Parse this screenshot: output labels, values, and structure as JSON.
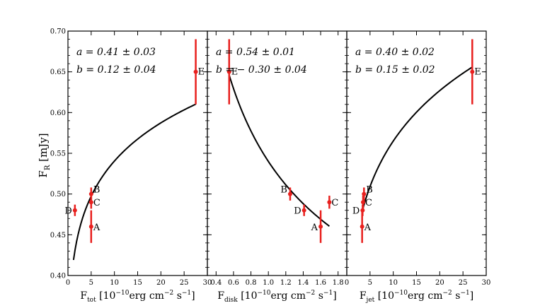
{
  "figure": {
    "ylabel_main": "F",
    "ylabel_sub": "R",
    "ylabel_unit": " [mJy]",
    "ylim": [
      0.4,
      0.7
    ],
    "yticks": [
      0.4,
      0.45,
      0.5,
      0.55,
      0.6,
      0.65,
      0.7
    ],
    "ytick_labels": [
      "0.40",
      "0.45",
      "0.50",
      "0.55",
      "0.60",
      "0.65",
      "0.70"
    ]
  },
  "chart_data": [
    {
      "type": "scatter",
      "name": "panel-tot",
      "xlabel": {
        "main": "F",
        "sub": "tot",
        "unit_pre": " [10",
        "exp1": "−10",
        "unit_mid1": "erg cm",
        "exp2": "−2",
        "unit_mid2": " s",
        "exp3": "−1",
        "unit_post": "]"
      },
      "xlim": [
        0,
        30
      ],
      "xticks": [
        0,
        5,
        10,
        15,
        20,
        25,
        30
      ],
      "xtick_labels": [
        "0",
        "5",
        "10",
        "15",
        "20",
        "25",
        "30"
      ],
      "points": [
        {
          "label": "A",
          "x": 5.0,
          "y": 0.46,
          "yerr": 0.02
        },
        {
          "label": "B",
          "x": 5.0,
          "y": 0.5,
          "yerr": 0.008
        },
        {
          "label": "C",
          "x": 5.0,
          "y": 0.49,
          "yerr": 0.008
        },
        {
          "label": "D",
          "x": 1.5,
          "y": 0.48,
          "yerr": 0.007
        },
        {
          "label": "E",
          "x": 27.5,
          "y": 0.65,
          "yerr": 0.04
        }
      ],
      "fit": {
        "a": 0.41,
        "b": 0.12,
        "x_range": [
          1.2,
          27.5
        ]
      },
      "annotations": [
        "a = 0.41 ± 0.03",
        "b = 0.12 ± 0.04"
      ]
    },
    {
      "type": "scatter",
      "name": "panel-disk",
      "xlabel": {
        "main": "F",
        "sub": "disk",
        "unit_pre": " [10",
        "exp1": "−10",
        "unit_mid1": "erg cm",
        "exp2": "−2",
        "unit_mid2": " s",
        "exp3": "−1",
        "unit_post": "]"
      },
      "xlim": [
        0.3,
        1.9
      ],
      "xticks": [
        0.4,
        0.6,
        0.8,
        1.0,
        1.2,
        1.4,
        1.6,
        1.8
      ],
      "xtick_labels": [
        "0.4",
        "0.6",
        "0.8",
        "1.0",
        "1.2",
        "1.4",
        "1.6",
        "1.8"
      ],
      "points": [
        {
          "label": "A",
          "x": 1.6,
          "y": 0.46,
          "yerr": 0.02
        },
        {
          "label": "B",
          "x": 1.25,
          "y": 0.5,
          "yerr": 0.008
        },
        {
          "label": "C",
          "x": 1.7,
          "y": 0.49,
          "yerr": 0.008
        },
        {
          "label": "D",
          "x": 1.41,
          "y": 0.48,
          "yerr": 0.007
        },
        {
          "label": "E",
          "x": 0.55,
          "y": 0.65,
          "yerr": 0.04
        }
      ],
      "fit": {
        "a": 0.54,
        "b": -0.3,
        "x_range": [
          0.55,
          1.7
        ]
      },
      "annotations": [
        "a = 0.54 ± 0.01",
        "b = − 0.30 ± 0.04"
      ]
    },
    {
      "type": "scatter",
      "name": "panel-jet",
      "xlabel": {
        "main": "F",
        "sub": "jet",
        "unit_pre": " [10",
        "exp1": "−10",
        "unit_mid1": "erg cm",
        "exp2": "−2",
        "unit_mid2": " s",
        "exp3": "−1",
        "unit_post": "]"
      },
      "xlim": [
        0,
        30
      ],
      "xticks": [
        0,
        5,
        10,
        15,
        20,
        25,
        30
      ],
      "xtick_labels": [
        "0",
        "5",
        "10",
        "15",
        "20",
        "25",
        "30"
      ],
      "points": [
        {
          "label": "A",
          "x": 3.3,
          "y": 0.46,
          "yerr": 0.02
        },
        {
          "label": "B",
          "x": 3.7,
          "y": 0.5,
          "yerr": 0.008
        },
        {
          "label": "C",
          "x": 3.5,
          "y": 0.49,
          "yerr": 0.008
        },
        {
          "label": "D",
          "x": 3.4,
          "y": 0.48,
          "yerr": 0.007
        },
        {
          "label": "E",
          "x": 27.0,
          "y": 0.65,
          "yerr": 0.04
        }
      ],
      "fit": {
        "a": 0.4,
        "b": 0.15,
        "x_range": [
          3.3,
          27.0
        ]
      },
      "annotations": [
        "a = 0.40 ± 0.02",
        "b = 0.15 ± 0.02"
      ]
    }
  ]
}
